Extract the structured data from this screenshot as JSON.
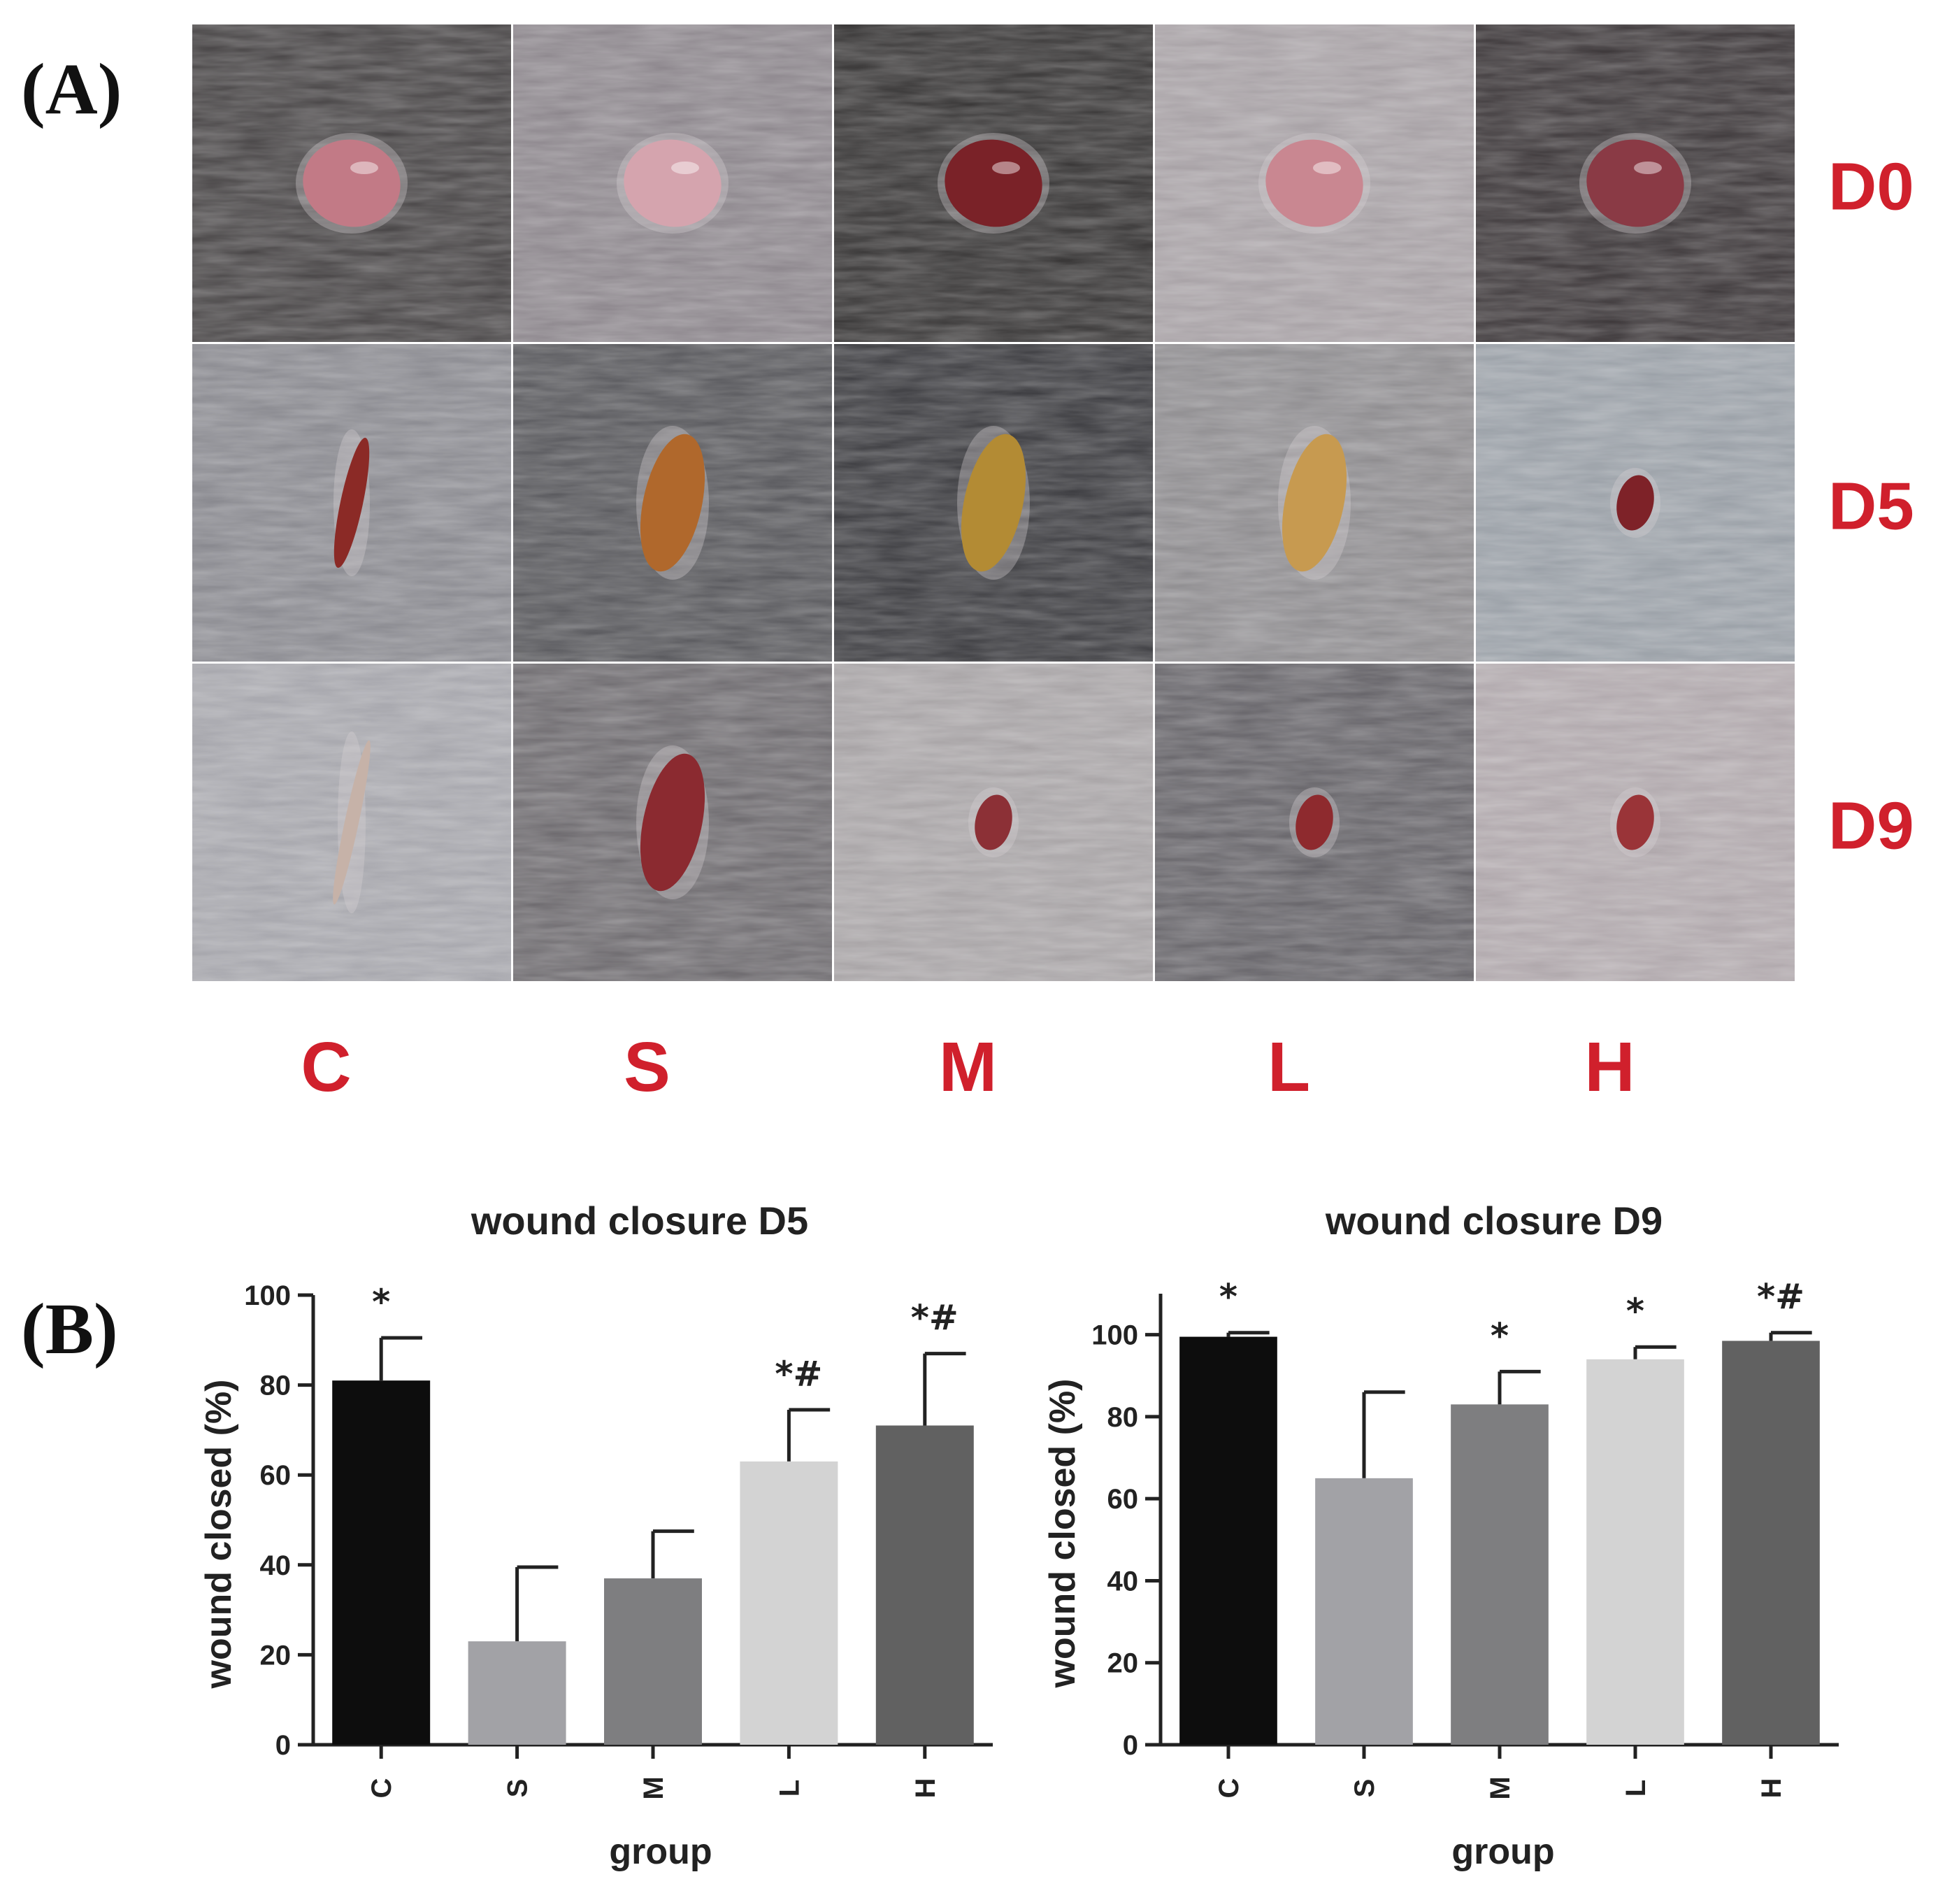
{
  "panel_a": {
    "letter": "(A)",
    "row_labels": [
      "D0",
      "D5",
      "D9"
    ],
    "col_labels": [
      "C",
      "S",
      "M",
      "L",
      "H"
    ],
    "label_color": "#d0202c",
    "photos": [
      [
        {
          "bg": "#4a4748",
          "wound": "#c27a86",
          "wound_type": "round"
        },
        {
          "bg": "#8d878d",
          "wound": "#d5a4ae",
          "wound_type": "round"
        },
        {
          "bg": "#3a3838",
          "wound": "#7a2228",
          "wound_type": "round"
        },
        {
          "bg": "#a7a1a5",
          "wound": "#c98791",
          "wound_type": "round"
        },
        {
          "bg": "#3f3a3c",
          "wound": "#8a3a45",
          "wound_type": "round"
        }
      ],
      [
        {
          "bg": "#8a8a90",
          "wound": "#8b2a26",
          "wound_type": "slit"
        },
        {
          "bg": "#59595d",
          "wound": "#b0682c",
          "wound_type": "scab"
        },
        {
          "bg": "#3e3e42",
          "wound": "#b38b34",
          "wound_type": "scab"
        },
        {
          "bg": "#8f8d90",
          "wound": "#c79a50",
          "wound_type": "scab"
        },
        {
          "bg": "#9aa0a7",
          "wound": "#7e2228",
          "wound_type": "small"
        }
      ],
      [
        {
          "bg": "#a6a6ac",
          "wound": "#c6b2a8",
          "wound_type": "scar"
        },
        {
          "bg": "#6f6c70",
          "wound": "#8b2a30",
          "wound_type": "scab"
        },
        {
          "bg": "#a8a4a6",
          "wound": "#8c3036",
          "wound_type": "small"
        },
        {
          "bg": "#67656a",
          "wound": "#8e2a2e",
          "wound_type": "small"
        },
        {
          "bg": "#b0a8ac",
          "wound": "#9a3438",
          "wound_type": "small"
        }
      ]
    ]
  },
  "panel_b": {
    "letter": "(B)"
  },
  "chart_data": [
    {
      "type": "bar",
      "title": "wound closure D5",
      "xlabel": "group",
      "ylabel": "wound closed (%)",
      "ylim": [
        0,
        100
      ],
      "yticks": [
        0,
        20,
        40,
        60,
        80,
        100
      ],
      "categories": [
        "C",
        "S",
        "M",
        "L",
        "H"
      ],
      "values": [
        81,
        23,
        37,
        63,
        71
      ],
      "errors": [
        9.5,
        16.5,
        10.5,
        11.5,
        16
      ],
      "significance": [
        "*",
        "",
        "",
        "*#",
        "*#"
      ],
      "colors": [
        "#0d0d0d",
        "#a2a2a6",
        "#7e7e80",
        "#d3d3d3",
        "#616161"
      ]
    },
    {
      "type": "bar",
      "title": "wound closure D9",
      "xlabel": "group",
      "ylabel": "wound closed (%)",
      "ylim": [
        0,
        110
      ],
      "yticks": [
        0,
        20,
        40,
        60,
        80,
        100
      ],
      "categories": [
        "C",
        "S",
        "M",
        "L",
        "H"
      ],
      "values": [
        99.5,
        65,
        83,
        94,
        98.5
      ],
      "errors": [
        1,
        21,
        8,
        3,
        2
      ],
      "significance": [
        "*",
        "",
        "*",
        "*",
        "*#"
      ],
      "colors": [
        "#0d0d0d",
        "#a2a2a6",
        "#7e7e80",
        "#d3d3d3",
        "#616161"
      ]
    }
  ]
}
